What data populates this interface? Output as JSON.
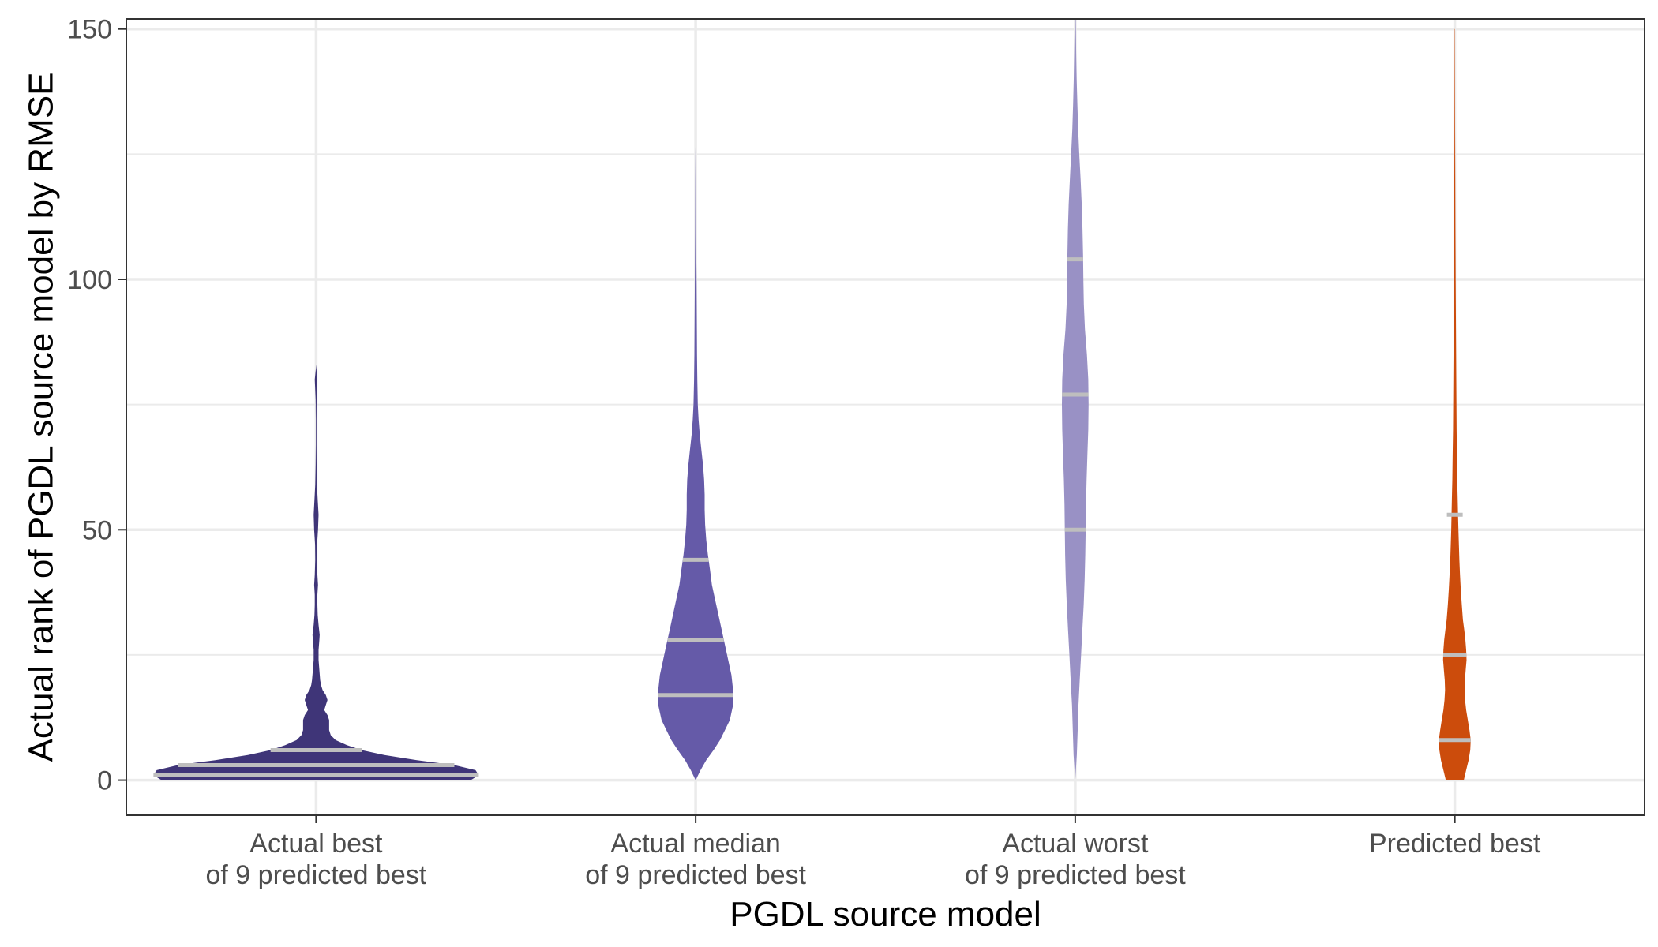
{
  "chart_data": {
    "type": "violin",
    "xlabel": "PGDL source model",
    "ylabel": "Actual rank of PGDL source model by RMSE",
    "ylim": [
      -7,
      152
    ],
    "y_ticks": [
      0,
      50,
      100,
      150
    ],
    "grid": true,
    "legend": "none",
    "categories": [
      {
        "line1": "Actual best",
        "line2": "of 9 predicted best"
      },
      {
        "line1": "Actual median",
        "line2": "of 9 predicted best"
      },
      {
        "line1": "Actual worst",
        "line2": "of 9 predicted best"
      },
      {
        "line1": "Predicted best",
        "line2": ""
      }
    ],
    "series": [
      {
        "color": "#3f3578",
        "quantiles": [
          1,
          3,
          6
        ],
        "density": [
          [
            0,
            0.95
          ],
          [
            1,
            1.0
          ],
          [
            2,
            0.98
          ],
          [
            3,
            0.85
          ],
          [
            4,
            0.62
          ],
          [
            5,
            0.42
          ],
          [
            6,
            0.28
          ],
          [
            7,
            0.19
          ],
          [
            8,
            0.12
          ],
          [
            9,
            0.09
          ],
          [
            10,
            0.08
          ],
          [
            11,
            0.08
          ],
          [
            12,
            0.08
          ],
          [
            13,
            0.07
          ],
          [
            14,
            0.05
          ],
          [
            15,
            0.06
          ],
          [
            16,
            0.07
          ],
          [
            17,
            0.06
          ],
          [
            18,
            0.04
          ],
          [
            19,
            0.03
          ],
          [
            20,
            0.025
          ],
          [
            22,
            0.02
          ],
          [
            24,
            0.015
          ],
          [
            26,
            0.015
          ],
          [
            28,
            0.02
          ],
          [
            29,
            0.022
          ],
          [
            31,
            0.015
          ],
          [
            33,
            0.01
          ],
          [
            35,
            0.008
          ],
          [
            37,
            0.008
          ],
          [
            39,
            0.012
          ],
          [
            41,
            0.008
          ],
          [
            44,
            0.005
          ],
          [
            47,
            0.006
          ],
          [
            50,
            0.012
          ],
          [
            53,
            0.015
          ],
          [
            56,
            0.01
          ],
          [
            59,
            0.005
          ],
          [
            63,
            0.003
          ],
          [
            67,
            0.002
          ],
          [
            72,
            0.002
          ],
          [
            76,
            0.003
          ],
          [
            80,
            0.008
          ],
          [
            82,
            0.002
          ],
          [
            83,
            0
          ]
        ]
      },
      {
        "color": "#655aa8",
        "quantiles": [
          17,
          28,
          44
        ],
        "density": [
          [
            0,
            0.0
          ],
          [
            2,
            0.03
          ],
          [
            4,
            0.065
          ],
          [
            6,
            0.11
          ],
          [
            8,
            0.15
          ],
          [
            10,
            0.18
          ],
          [
            12,
            0.21
          ],
          [
            15,
            0.23
          ],
          [
            18,
            0.23
          ],
          [
            21,
            0.22
          ],
          [
            24,
            0.2
          ],
          [
            27,
            0.18
          ],
          [
            30,
            0.16
          ],
          [
            33,
            0.14
          ],
          [
            36,
            0.12
          ],
          [
            39,
            0.1
          ],
          [
            42,
            0.088
          ],
          [
            45,
            0.075
          ],
          [
            48,
            0.065
          ],
          [
            51,
            0.058
          ],
          [
            54,
            0.055
          ],
          [
            57,
            0.055
          ],
          [
            60,
            0.052
          ],
          [
            63,
            0.045
          ],
          [
            66,
            0.035
          ],
          [
            69,
            0.025
          ],
          [
            72,
            0.018
          ],
          [
            75,
            0.013
          ],
          [
            80,
            0.01
          ],
          [
            85,
            0.008
          ],
          [
            90,
            0.007
          ],
          [
            95,
            0.006
          ],
          [
            100,
            0.005
          ],
          [
            105,
            0.004
          ],
          [
            110,
            0.003
          ],
          [
            115,
            0.0025
          ],
          [
            120,
            0.002
          ],
          [
            125,
            0.001
          ],
          [
            128,
            0
          ]
        ]
      },
      {
        "color": "#9991c5",
        "quantiles": [
          50,
          77,
          104
        ],
        "density": [
          [
            0,
            0.0
          ],
          [
            5,
            0.01
          ],
          [
            10,
            0.015
          ],
          [
            15,
            0.02
          ],
          [
            20,
            0.028
          ],
          [
            25,
            0.036
          ],
          [
            30,
            0.044
          ],
          [
            35,
            0.052
          ],
          [
            40,
            0.058
          ],
          [
            45,
            0.062
          ],
          [
            50,
            0.064
          ],
          [
            55,
            0.066
          ],
          [
            60,
            0.07
          ],
          [
            65,
            0.075
          ],
          [
            70,
            0.08
          ],
          [
            75,
            0.082
          ],
          [
            80,
            0.08
          ],
          [
            85,
            0.072
          ],
          [
            90,
            0.06
          ],
          [
            95,
            0.053
          ],
          [
            100,
            0.05
          ],
          [
            105,
            0.048
          ],
          [
            110,
            0.045
          ],
          [
            115,
            0.04
          ],
          [
            120,
            0.033
          ],
          [
            125,
            0.025
          ],
          [
            130,
            0.018
          ],
          [
            135,
            0.013
          ],
          [
            140,
            0.009
          ],
          [
            145,
            0.006
          ],
          [
            150,
            0.004
          ],
          [
            152,
            0.003
          ]
        ]
      },
      {
        "color": "#cc4c0c",
        "quantiles": [
          8,
          25,
          53
        ],
        "density": [
          [
            0,
            0.055
          ],
          [
            2,
            0.07
          ],
          [
            4,
            0.085
          ],
          [
            6,
            0.095
          ],
          [
            8,
            0.098
          ],
          [
            10,
            0.09
          ],
          [
            12,
            0.08
          ],
          [
            14,
            0.07
          ],
          [
            16,
            0.063
          ],
          [
            18,
            0.06
          ],
          [
            20,
            0.062
          ],
          [
            22,
            0.067
          ],
          [
            24,
            0.072
          ],
          [
            26,
            0.07
          ],
          [
            28,
            0.065
          ],
          [
            30,
            0.058
          ],
          [
            32,
            0.05
          ],
          [
            35,
            0.043
          ],
          [
            38,
            0.037
          ],
          [
            41,
            0.032
          ],
          [
            44,
            0.028
          ],
          [
            47,
            0.025
          ],
          [
            50,
            0.022
          ],
          [
            53,
            0.02
          ],
          [
            56,
            0.018
          ],
          [
            60,
            0.015
          ],
          [
            65,
            0.013
          ],
          [
            70,
            0.011
          ],
          [
            75,
            0.01
          ],
          [
            80,
            0.009
          ],
          [
            85,
            0.008
          ],
          [
            90,
            0.007
          ],
          [
            95,
            0.006
          ],
          [
            100,
            0.005
          ],
          [
            110,
            0.004
          ],
          [
            120,
            0.003
          ],
          [
            130,
            0.002
          ],
          [
            140,
            0.0015
          ],
          [
            150,
            0.001
          ]
        ]
      }
    ]
  }
}
